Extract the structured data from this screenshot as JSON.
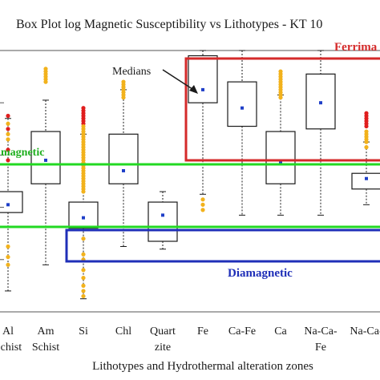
{
  "chart_data": {
    "type": "box",
    "title": "Box Plot log Magnetic Susceptibility  vs  Lithotypes - KT 10",
    "xlabel": "Lithotypes and Hydrothermal alteration zones",
    "ylabel": "",
    "ylim": [
      0,
      100
    ],
    "grid": false,
    "categories": [
      {
        "line1": "Al",
        "line2": "Schist"
      },
      {
        "line1": "Am",
        "line2": "Schist"
      },
      {
        "line1": "Si",
        "line2": ""
      },
      {
        "line1": "Chl",
        "line2": ""
      },
      {
        "line1": "Quart",
        "line2": "zite"
      },
      {
        "line1": "Fe",
        "line2": ""
      },
      {
        "line1": "Ca-Fe",
        "line2": ""
      },
      {
        "line1": "Ca",
        "line2": ""
      },
      {
        "line1": "Na-Ca-",
        "line2": "Fe"
      },
      {
        "line1": "Na-Ca-",
        "line2": ""
      }
    ],
    "boxes": [
      {
        "min": 8,
        "q1": 38,
        "median": 41,
        "q3": 46,
        "max": 74
      },
      {
        "min": 18,
        "q1": 49,
        "median": 58,
        "q3": 69,
        "max": 81
      },
      {
        "min": 5,
        "q1": 32,
        "median": 36,
        "q3": 42,
        "max": 68
      },
      {
        "min": 25,
        "q1": 49,
        "median": 54,
        "q3": 68,
        "max": 85
      },
      {
        "min": 24,
        "q1": 27,
        "median": 37,
        "q3": 42,
        "max": 46
      },
      {
        "min": 45,
        "q1": 80,
        "median": 85,
        "q3": 98,
        "max": 100
      },
      {
        "min": 37,
        "q1": 71,
        "median": 78,
        "q3": 88,
        "max": 100
      },
      {
        "min": 37,
        "q1": 49,
        "median": 57,
        "q3": 69,
        "max": 83
      },
      {
        "min": 37,
        "q1": 70,
        "median": 80,
        "q3": 91,
        "max": 100
      },
      {
        "min": 41,
        "q1": 47,
        "median": 51,
        "q3": 53,
        "max": 65
      }
    ],
    "outliers": [
      {
        "category": 0,
        "red": [
          75,
          70,
          62,
          58
        ],
        "orange": [
          72,
          68,
          66,
          25,
          21,
          18
        ]
      },
      {
        "category": 1,
        "red": [],
        "orange": [
          91,
          93,
          92,
          90,
          89,
          88
        ]
      },
      {
        "category": 2,
        "red": [
          78,
          77,
          76,
          75,
          74,
          73,
          72
        ],
        "orange": [
          71,
          70,
          69,
          68,
          67,
          66,
          65,
          64,
          63,
          62,
          61,
          60,
          59,
          58,
          57,
          56,
          55,
          54,
          53,
          52,
          51,
          50,
          49,
          48,
          47,
          46,
          28,
          22,
          20,
          16,
          13,
          10,
          8,
          6
        ]
      },
      {
        "category": 3,
        "red": [],
        "orange": [
          88,
          87,
          86,
          85,
          84,
          83,
          82
        ]
      },
      {
        "category": 5,
        "red": [],
        "orange": [
          43,
          41,
          39
        ]
      },
      {
        "category": 7,
        "red": [],
        "orange": [
          92,
          91,
          90,
          89,
          88,
          87,
          86,
          85,
          84,
          83,
          82
        ]
      },
      {
        "category": 9,
        "red": [
          76,
          75,
          74,
          73,
          72,
          71
        ],
        "orange": [
          69,
          68,
          67,
          66,
          65,
          63
        ]
      }
    ],
    "annotations": {
      "ferrimagnetic": "Ferrima",
      "paramagnetic": "magnetic",
      "diamagnetic": "Diamagnetic",
      "medians": "Medians"
    },
    "colors": {
      "ferrimagnetic": "#d42a2a",
      "paramagnetic": "#22d922",
      "diamagnetic": "#1f2fb8",
      "median": "#1f3fc8",
      "outlier_red": "#e01e1e",
      "outlier_orange": "#f2b21c",
      "box": "#1a1a1a"
    }
  }
}
